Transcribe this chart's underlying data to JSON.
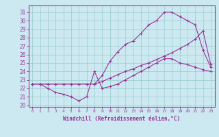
{
  "title": "",
  "xlabel": "Windchill (Refroidissement éolien,°C)",
  "bg_color": "#cce8f0",
  "line_color": "#993399",
  "xlim": [
    -0.5,
    23.5
  ],
  "ylim": [
    19.8,
    31.8
  ],
  "xticks": [
    0,
    1,
    2,
    3,
    4,
    5,
    6,
    7,
    8,
    9,
    10,
    11,
    12,
    13,
    14,
    15,
    16,
    17,
    18,
    19,
    20,
    21,
    22,
    23
  ],
  "yticks": [
    20,
    21,
    22,
    23,
    24,
    25,
    26,
    27,
    28,
    29,
    30,
    31
  ],
  "grid_color": "#99cccc",
  "line1_x": [
    0,
    1,
    2,
    3,
    4,
    5,
    6,
    7,
    8,
    9,
    10,
    11,
    12,
    13,
    14,
    15,
    16,
    17,
    18,
    19,
    20,
    21,
    22,
    23
  ],
  "line1_y": [
    22.5,
    22.5,
    22.5,
    22.5,
    22.5,
    22.5,
    22.5,
    22.5,
    22.5,
    23.5,
    25.2,
    26.3,
    27.2,
    27.6,
    28.5,
    29.5,
    30.0,
    31.0,
    31.0,
    30.5,
    30.0,
    29.5,
    26.5,
    24.5
  ],
  "line2_x": [
    0,
    1,
    2,
    3,
    4,
    5,
    6,
    7,
    8,
    9,
    10,
    11,
    12,
    13,
    14,
    15,
    16,
    17,
    18,
    19,
    20,
    21,
    22,
    23
  ],
  "line2_y": [
    22.5,
    22.5,
    22.5,
    22.5,
    22.5,
    22.5,
    22.5,
    22.5,
    22.5,
    22.8,
    23.2,
    23.6,
    24.0,
    24.3,
    24.7,
    25.0,
    25.4,
    25.8,
    26.2,
    26.7,
    27.2,
    27.8,
    28.8,
    24.8
  ],
  "line3_x": [
    0,
    1,
    2,
    3,
    4,
    5,
    6,
    7,
    8,
    9,
    10,
    11,
    12,
    13,
    14,
    15,
    16,
    17,
    18,
    19,
    20,
    21,
    22,
    23
  ],
  "line3_y": [
    22.5,
    22.5,
    22.0,
    21.5,
    21.3,
    21.0,
    20.5,
    21.0,
    24.0,
    22.0,
    22.2,
    22.5,
    23.0,
    23.5,
    24.0,
    24.5,
    25.0,
    25.5,
    25.5,
    25.0,
    24.8,
    24.5,
    24.2,
    24.0
  ]
}
